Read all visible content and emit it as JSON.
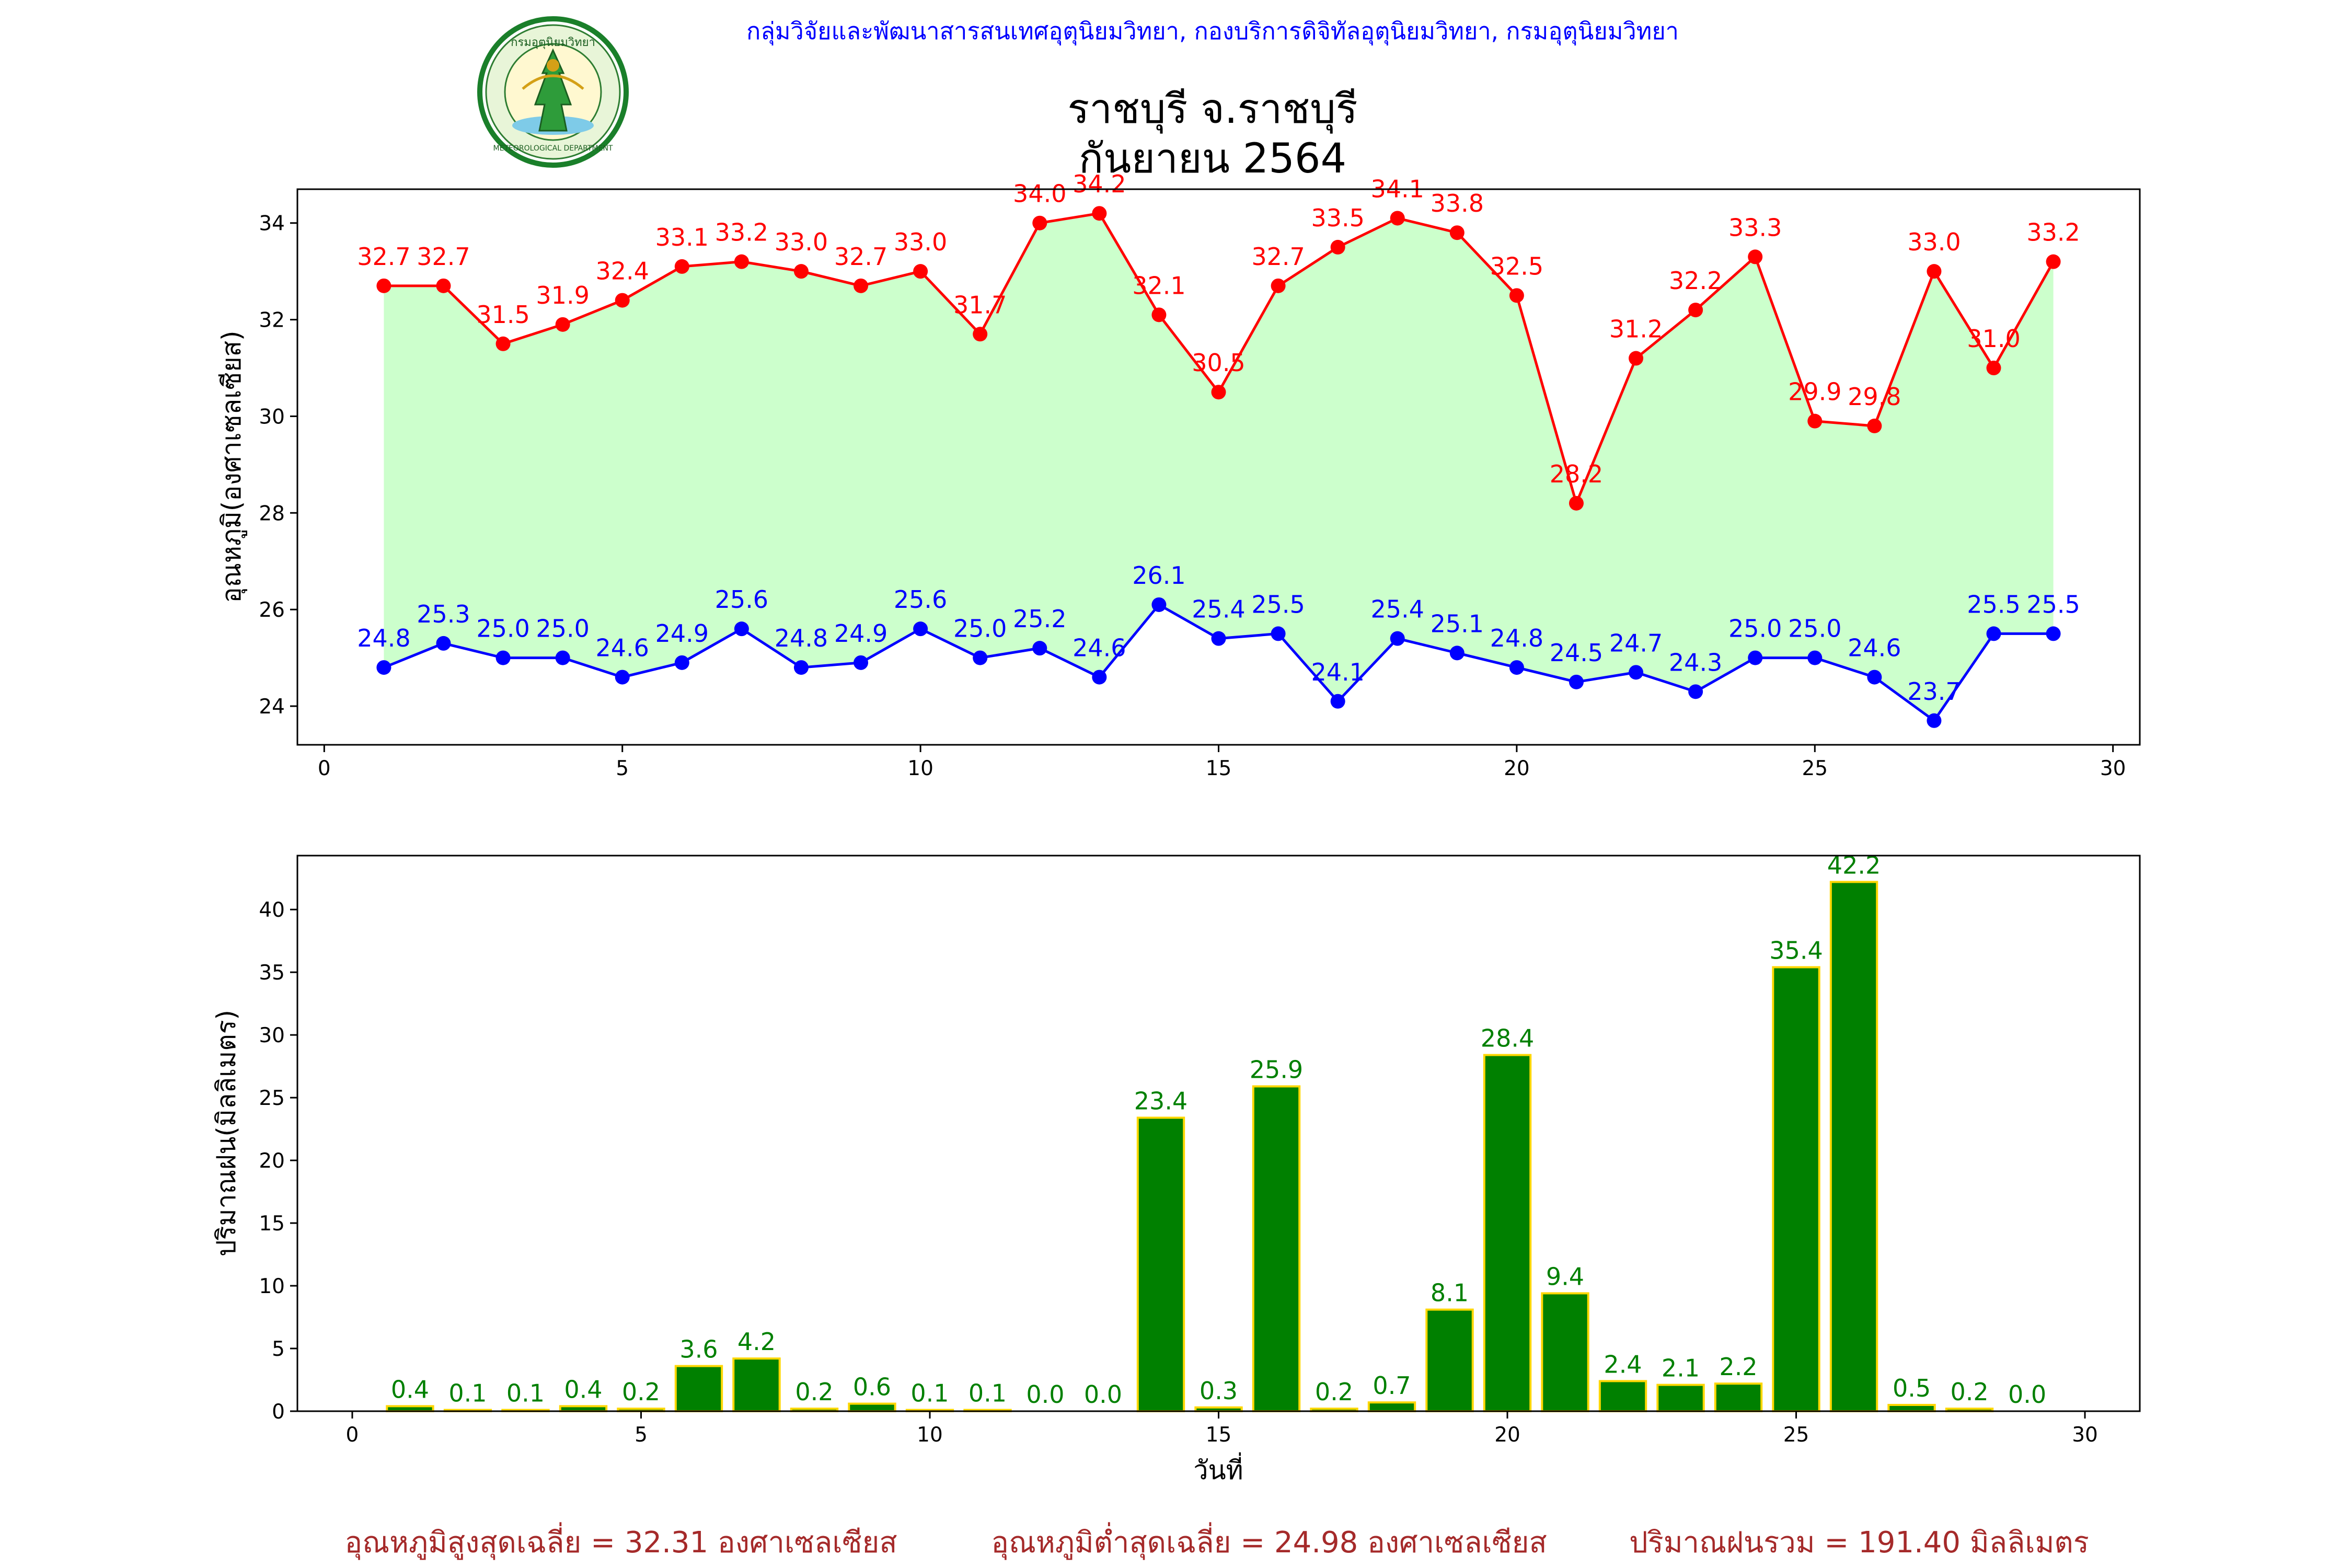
{
  "header": {
    "agency": "กลุ่มวิจัยและพัฒนาสารสนเทศอุตุนิยมวิทยา, กองบริการดิจิทัลอุตุนิยมวิทยา, กรมอุตุนิยมวิทยา",
    "logo_icon": "meteorological-department-seal-icon",
    "logo_text_top": "กรมอุตุนิยมวิทยา",
    "logo_text_bottom": "METEOROLOGICAL DEPARTMENT"
  },
  "title": {
    "line1": "ราชบุรี จ.ราชบุรี",
    "line2": "กันยายน 2564"
  },
  "colors": {
    "max_line": "#ff0000",
    "min_line": "#0000ff",
    "fill": "#ccffcc",
    "bar_fill": "#008000",
    "bar_edge": "#ffd700",
    "rain_label": "#008000",
    "footer": "#a52a2a"
  },
  "chart_data": [
    {
      "type": "line",
      "ylabel": "อุณหภูมิ(องศาเซลเซียส)",
      "xlabel": "",
      "xlim": [
        -0.45,
        30.45
      ],
      "ylim": [
        23.2,
        34.7
      ],
      "xticks": [
        0,
        5,
        10,
        15,
        20,
        25,
        30
      ],
      "yticks": [
        24,
        26,
        28,
        30,
        32,
        34
      ],
      "grid": false,
      "x": [
        1,
        2,
        3,
        4,
        5,
        6,
        7,
        8,
        9,
        10,
        11,
        12,
        13,
        14,
        15,
        16,
        17,
        18,
        19,
        20,
        21,
        22,
        23,
        24,
        25,
        26,
        27,
        28,
        29
      ],
      "series": [
        {
          "key": "max",
          "values": [
            32.7,
            32.7,
            31.5,
            31.9,
            32.4,
            33.1,
            33.2,
            33.0,
            32.7,
            33.0,
            31.7,
            34.0,
            34.2,
            32.1,
            30.5,
            32.7,
            33.5,
            34.1,
            33.8,
            32.5,
            28.2,
            31.2,
            32.2,
            33.3,
            29.9,
            29.8,
            33.0,
            31.0,
            33.2
          ]
        },
        {
          "key": "min",
          "values": [
            24.8,
            25.3,
            25.0,
            25.0,
            24.6,
            24.9,
            25.6,
            24.8,
            24.9,
            25.6,
            25.0,
            25.2,
            24.6,
            26.1,
            25.4,
            25.5,
            24.1,
            25.4,
            25.1,
            24.8,
            24.5,
            24.7,
            24.3,
            25.0,
            25.0,
            24.6,
            23.7,
            25.5,
            25.5
          ]
        }
      ]
    },
    {
      "type": "bar",
      "ylabel": "ปริมาณฝน(มิลลิเมตร)",
      "xlabel": "วันที่",
      "xlim": [
        -0.95,
        30.95
      ],
      "ylim": [
        0,
        44.3
      ],
      "xticks": [
        0,
        5,
        10,
        15,
        20,
        25,
        30
      ],
      "yticks": [
        0,
        5,
        10,
        15,
        20,
        25,
        30,
        35,
        40
      ],
      "grid": false,
      "x": [
        1,
        2,
        3,
        4,
        5,
        6,
        7,
        8,
        9,
        10,
        11,
        12,
        13,
        14,
        15,
        16,
        17,
        18,
        19,
        20,
        21,
        22,
        23,
        24,
        25,
        26,
        27,
        28,
        29
      ],
      "values": [
        0.4,
        0.1,
        0.1,
        0.4,
        0.2,
        3.6,
        4.2,
        0.2,
        0.6,
        0.1,
        0.1,
        0.0,
        0.0,
        23.4,
        0.3,
        25.9,
        0.2,
        0.7,
        8.1,
        28.4,
        9.4,
        2.4,
        2.1,
        2.2,
        35.4,
        42.2,
        0.5,
        0.2,
        0.0
      ]
    }
  ],
  "footer": {
    "avg_max": "อุณหภูมิสูงสุดเฉลี่ย = 32.31 องศาเซลเซียส",
    "avg_min": "อุณหภูมิต่ำสุดเฉลี่ย = 24.98 องศาเซลเซียส",
    "total_rain": "ปริมาณฝนรวม = 191.40 มิลลิเมตร"
  }
}
